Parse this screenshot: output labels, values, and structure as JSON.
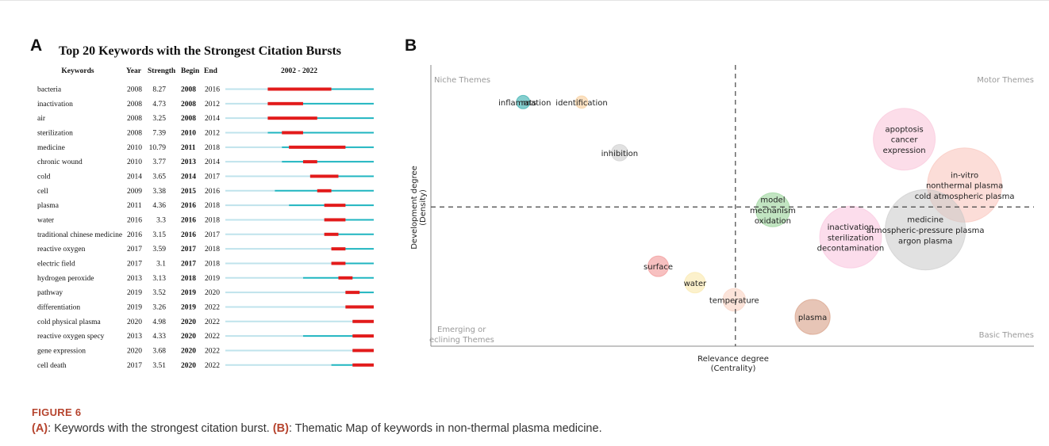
{
  "figure": {
    "label": "FIGURE 6",
    "caption_parts": [
      {
        "bold": "(A)",
        "text": ": Keywords with the strongest citation burst. "
      },
      {
        "bold": "(B)",
        "text": ": Thematic Map of keywords in non-thermal plasma medicine."
      }
    ]
  },
  "chart_data": [
    {
      "type": "table",
      "panel": "A",
      "title": "Top 20 Keywords with the Strongest Citation Bursts",
      "columns": [
        "Keywords",
        "Year",
        "Strength",
        "Begin",
        "End",
        "2002 - 2022"
      ],
      "range": [
        2002,
        2022
      ],
      "colors": {
        "before": "#bfe3ec",
        "active": "#1fb5c0",
        "burst": "#e21b1b"
      },
      "rows": [
        {
          "keyword": "bacteria",
          "year": 2008,
          "strength": "8.27",
          "begin": 2008,
          "end": 2016
        },
        {
          "keyword": "inactivation",
          "year": 2008,
          "strength": "4.73",
          "begin": 2008,
          "end": 2012
        },
        {
          "keyword": "air",
          "year": 2008,
          "strength": "3.25",
          "begin": 2008,
          "end": 2014
        },
        {
          "keyword": "sterilization",
          "year": 2008,
          "strength": "7.39",
          "begin": 2010,
          "end": 2012
        },
        {
          "keyword": "medicine",
          "year": 2010,
          "strength": "10.79",
          "begin": 2011,
          "end": 2018
        },
        {
          "keyword": "chronic wound",
          "year": 2010,
          "strength": "3.77",
          "begin": 2013,
          "end": 2014
        },
        {
          "keyword": "cold",
          "year": 2014,
          "strength": "3.65",
          "begin": 2014,
          "end": 2017
        },
        {
          "keyword": "cell",
          "year": 2009,
          "strength": "3.38",
          "begin": 2015,
          "end": 2016
        },
        {
          "keyword": "plasma",
          "year": 2011,
          "strength": "4.36",
          "begin": 2016,
          "end": 2018
        },
        {
          "keyword": "water",
          "year": 2016,
          "strength": "3.3",
          "begin": 2016,
          "end": 2018
        },
        {
          "keyword": "traditional chinese medicine",
          "year": 2016,
          "strength": "3.15",
          "begin": 2016,
          "end": 2017
        },
        {
          "keyword": "reactive oxygen",
          "year": 2017,
          "strength": "3.59",
          "begin": 2017,
          "end": 2018
        },
        {
          "keyword": "electric field",
          "year": 2017,
          "strength": "3.1",
          "begin": 2017,
          "end": 2018
        },
        {
          "keyword": "hydrogen peroxide",
          "year": 2013,
          "strength": "3.13",
          "begin": 2018,
          "end": 2019
        },
        {
          "keyword": "pathway",
          "year": 2019,
          "strength": "3.52",
          "begin": 2019,
          "end": 2020
        },
        {
          "keyword": "differentiation",
          "year": 2019,
          "strength": "3.26",
          "begin": 2019,
          "end": 2022
        },
        {
          "keyword": "cold physical plasma",
          "year": 2020,
          "strength": "4.98",
          "begin": 2020,
          "end": 2022
        },
        {
          "keyword": "reactive oxygen specy",
          "year": 2013,
          "strength": "4.33",
          "begin": 2020,
          "end": 2022
        },
        {
          "keyword": "gene expression",
          "year": 2020,
          "strength": "3.68",
          "begin": 2020,
          "end": 2022
        },
        {
          "keyword": "cell death",
          "year": 2017,
          "strength": "3.51",
          "begin": 2020,
          "end": 2022
        }
      ]
    },
    {
      "type": "scatter",
      "subtype": "bubble",
      "panel": "B",
      "xlabel": "Relevance degree\n(Centrality)",
      "ylabel": "Development degree\n(Density)",
      "xlim": [
        0,
        100
      ],
      "ylim": [
        0,
        100
      ],
      "divider_x": 50.5,
      "divider_y": 49.5,
      "quadrants": {
        "top_left": "Niche Themes",
        "top_right": "Motor Themes",
        "bottom_left": "Emerging or\neclining Themes",
        "bottom_right": "Basic Themes"
      },
      "grid": false,
      "bubbles": [
        {
          "labels": [
            "inflammation",
            "rats"
          ],
          "x": 15.3,
          "y": 86.8,
          "size": 1.3,
          "color": "#1fa5a5"
        },
        {
          "labels": [
            "identification"
          ],
          "x": 25.0,
          "y": 86.8,
          "size": 1.2,
          "color": "#f7c98f"
        },
        {
          "labels": [
            "inhibition"
          ],
          "x": 31.3,
          "y": 68.8,
          "size": 1.6,
          "color": "#c9c9c9"
        },
        {
          "labels": [
            "model",
            "mechanism",
            "oxidation"
          ],
          "x": 56.7,
          "y": 48.5,
          "size": 3.3,
          "color": "#8fd08f"
        },
        {
          "labels": [
            "apoptosis",
            "cancer",
            "expression"
          ],
          "x": 78.5,
          "y": 73.6,
          "size": 6.0,
          "color": "#f9c1d7"
        },
        {
          "labels": [
            "in-vitro",
            "nonthermal plasma",
            "cold atmospheric plasma"
          ],
          "x": 88.5,
          "y": 57.3,
          "size": 7.2,
          "color": "#f9c1b8"
        },
        {
          "labels": [
            "medicine",
            "atmospheric-pressure plasma",
            "argon plasma"
          ],
          "x": 82.0,
          "y": 41.4,
          "size": 7.8,
          "color": "#c8c8c8"
        },
        {
          "labels": [
            "inactivation",
            "sterilization",
            "decontamination"
          ],
          "x": 69.6,
          "y": 38.8,
          "size": 6.0,
          "color": "#f9c1dc"
        },
        {
          "labels": [
            "surface"
          ],
          "x": 37.7,
          "y": 28.4,
          "size": 2.0,
          "color": "#f08c8c"
        },
        {
          "labels": [
            "water"
          ],
          "x": 43.8,
          "y": 22.6,
          "size": 2.0,
          "color": "#f9e6a3"
        },
        {
          "labels": [
            "temperature"
          ],
          "x": 50.3,
          "y": 16.5,
          "size": 2.2,
          "color": "#f9cdbc"
        },
        {
          "labels": [
            "plasma"
          ],
          "x": 63.3,
          "y": 10.4,
          "size": 3.4,
          "color": "#d4967a"
        }
      ]
    }
  ]
}
